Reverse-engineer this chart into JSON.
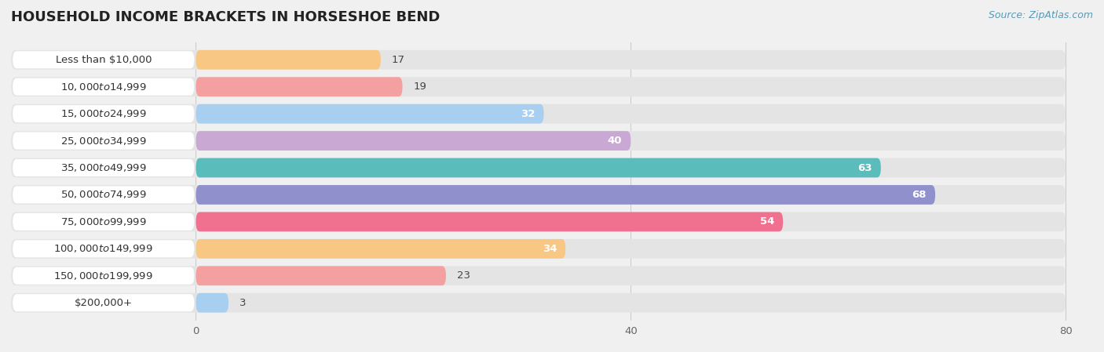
{
  "title": "HOUSEHOLD INCOME BRACKETS IN HORSESHOE BEND",
  "source": "Source: ZipAtlas.com",
  "categories": [
    "Less than $10,000",
    "$10,000 to $14,999",
    "$15,000 to $24,999",
    "$25,000 to $34,999",
    "$35,000 to $49,999",
    "$50,000 to $74,999",
    "$75,000 to $99,999",
    "$100,000 to $149,999",
    "$150,000 to $199,999",
    "$200,000+"
  ],
  "values": [
    17,
    19,
    32,
    40,
    63,
    68,
    54,
    34,
    23,
    3
  ],
  "bar_colors": [
    "#f9c784",
    "#f4a0a0",
    "#a8cef0",
    "#c9a8d4",
    "#5bbcbc",
    "#9090cc",
    "#f07090",
    "#f9c784",
    "#f4a0a0",
    "#a8cef0"
  ],
  "background_color": "#f0f0f0",
  "bar_bg_color": "#e4e4e4",
  "label_bg_color": "#ffffff",
  "xlim_max": 80,
  "xticks": [
    0,
    40,
    80
  ],
  "title_fontsize": 13,
  "label_fontsize": 9.5,
  "value_fontsize": 9.5,
  "source_fontsize": 9
}
